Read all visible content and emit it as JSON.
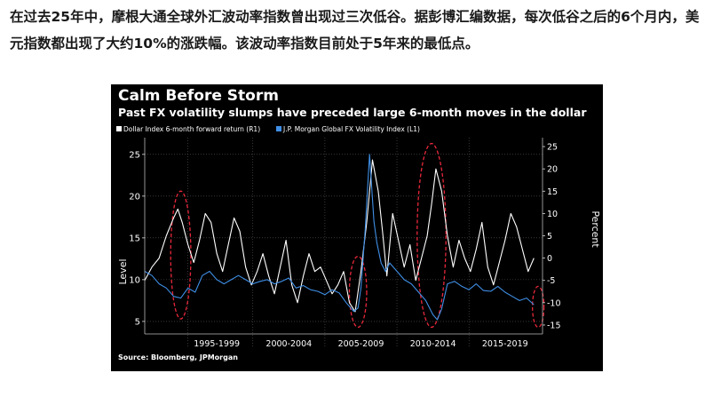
{
  "article": {
    "paragraph": "在过去25年中，摩根大通全球外汇波动率指数曾出现过三次低谷。据彭博汇编数据，每次低谷之后的6个月内，美元指数都出现了大约10%的涨跌幅。该波动率指数目前处于5年来的最低点。"
  },
  "chart_data": {
    "type": "line",
    "title": "Calm Before Storm",
    "subtitle": "Past FX volatility slumps have preceded large 6-month moves in the dollar",
    "source": "Source: Bloomberg, JPMorgan",
    "ylabel_left": "Level",
    "ylabel_right": "Percent",
    "ylim_left": [
      3.5,
      27
    ],
    "ylim_right": [
      -17,
      27
    ],
    "yticks_left": [
      5,
      10,
      15,
      20,
      25
    ],
    "yticks_right": [
      "25",
      "20",
      "15",
      "10",
      "5",
      "0",
      "-5",
      "-10",
      "-15"
    ],
    "yticks_right_values": [
      25,
      20,
      15,
      10,
      5,
      0,
      -5,
      -10,
      -15
    ],
    "xlim": [
      1992.0,
      2019.6
    ],
    "x_period_labels": [
      "1995-1999",
      "2000-2004",
      "2005-2009",
      "2010-2014",
      "2015-2019"
    ],
    "x_period_centers": [
      1997,
      2002,
      2007,
      2012,
      2017
    ],
    "x_period_separators": [
      1995,
      1999.5,
      2004.5,
      2009.5,
      2014.5
    ],
    "grid": true,
    "legend_position": "top-left",
    "highlighted_periods": [
      {
        "x_center": 1994.5,
        "x_halfwidth": 0.7,
        "y_top_left": 20.6,
        "y_bottom_left": 5.3
      },
      {
        "x_center": 2006.8,
        "x_halfwidth": 0.6,
        "y_top_left": 12.8,
        "y_bottom_left": 4.3
      },
      {
        "x_center": 2011.9,
        "x_halfwidth": 1.0,
        "y_top_left": 26.3,
        "y_bottom_left": 4.3
      },
      {
        "x_center": 2019.3,
        "x_halfwidth": 0.4,
        "y_top_left": 9.2,
        "y_bottom_left": 4.3
      }
    ],
    "series": [
      {
        "name": "Dollar Index 6-month forward return (R1)",
        "axis": "right",
        "color": "#ffffff",
        "x": [
          1992.0,
          1992.5,
          1993.0,
          1993.5,
          1994.0,
          1994.3,
          1994.6,
          1995.0,
          1995.4,
          1995.8,
          1996.2,
          1996.6,
          1997.0,
          1997.4,
          1997.8,
          1998.2,
          1998.6,
          1999.0,
          1999.4,
          1999.8,
          2000.2,
          2000.6,
          2001.0,
          2001.4,
          2001.8,
          2002.2,
          2002.6,
          2003.0,
          2003.4,
          2003.8,
          2004.2,
          2004.6,
          2005.0,
          2005.4,
          2005.8,
          2006.2,
          2006.6,
          2007.0,
          2007.4,
          2007.8,
          2008.2,
          2008.5,
          2008.8,
          2009.2,
          2009.6,
          2010.0,
          2010.4,
          2010.8,
          2011.2,
          2011.6,
          2011.9,
          2012.2,
          2012.6,
          2013.0,
          2013.4,
          2013.8,
          2014.2,
          2014.6,
          2015.0,
          2015.4,
          2015.8,
          2016.2,
          2016.6,
          2017.0,
          2017.4,
          2017.8,
          2018.2,
          2018.6,
          2019.0
        ],
        "values": [
          -5,
          -2,
          0,
          5,
          9,
          11,
          8,
          3,
          -1,
          4,
          10,
          8,
          1,
          -3,
          3,
          9,
          6,
          -2,
          -6,
          -3,
          1,
          -4,
          -8,
          -2,
          4,
          -6,
          -10,
          -4,
          1,
          -3,
          -2,
          -5,
          -8,
          -6,
          -3,
          -10,
          -12,
          -3,
          8,
          22,
          15,
          6,
          -4,
          10,
          4,
          -2,
          3,
          -5,
          0,
          5,
          12,
          20,
          15,
          5,
          -2,
          4,
          0,
          -3,
          2,
          8,
          -2,
          -6,
          -1,
          4,
          10,
          7,
          2,
          -3,
          0
        ]
      },
      {
        "name": "J.P. Morgan Global FX Volatility Index (L1)",
        "axis": "left",
        "color": "#3f8fe6",
        "x": [
          1992.0,
          1992.5,
          1993.0,
          1993.5,
          1994.0,
          1994.5,
          1995.0,
          1995.5,
          1996.0,
          1996.5,
          1997.0,
          1997.5,
          1998.0,
          1998.5,
          1999.0,
          1999.5,
          2000.0,
          2000.5,
          2001.0,
          2001.5,
          2002.0,
          2002.5,
          2003.0,
          2003.5,
          2004.0,
          2004.5,
          2005.0,
          2005.5,
          2006.0,
          2006.5,
          2006.8,
          2007.0,
          2007.3,
          2007.6,
          2007.9,
          2008.1,
          2008.4,
          2008.7,
          2009.0,
          2009.5,
          2010.0,
          2010.5,
          2011.0,
          2011.5,
          2012.0,
          2012.3,
          2012.6,
          2013.0,
          2013.5,
          2014.0,
          2014.5,
          2015.0,
          2015.5,
          2016.0,
          2016.5,
          2017.0,
          2017.5,
          2018.0,
          2018.5,
          2019.0
        ],
        "values": [
          11,
          10.5,
          9.5,
          9,
          8,
          7.8,
          9,
          8.5,
          10.5,
          11,
          10,
          9.5,
          10,
          10.5,
          10,
          9.5,
          9.8,
          10,
          9.5,
          9.8,
          10.2,
          9,
          9.3,
          8.8,
          8.6,
          8.2,
          8.8,
          8.4,
          7.2,
          6.2,
          6.6,
          9,
          16,
          25,
          17,
          14.5,
          12,
          11,
          12,
          11,
          10,
          9.5,
          8.5,
          7.5,
          5.8,
          5.2,
          6.5,
          9.5,
          9.8,
          9.2,
          8.8,
          9.5,
          8.7,
          8.6,
          9.2,
          8.5,
          8.0,
          7.5,
          7.8,
          7.0
        ]
      }
    ]
  }
}
